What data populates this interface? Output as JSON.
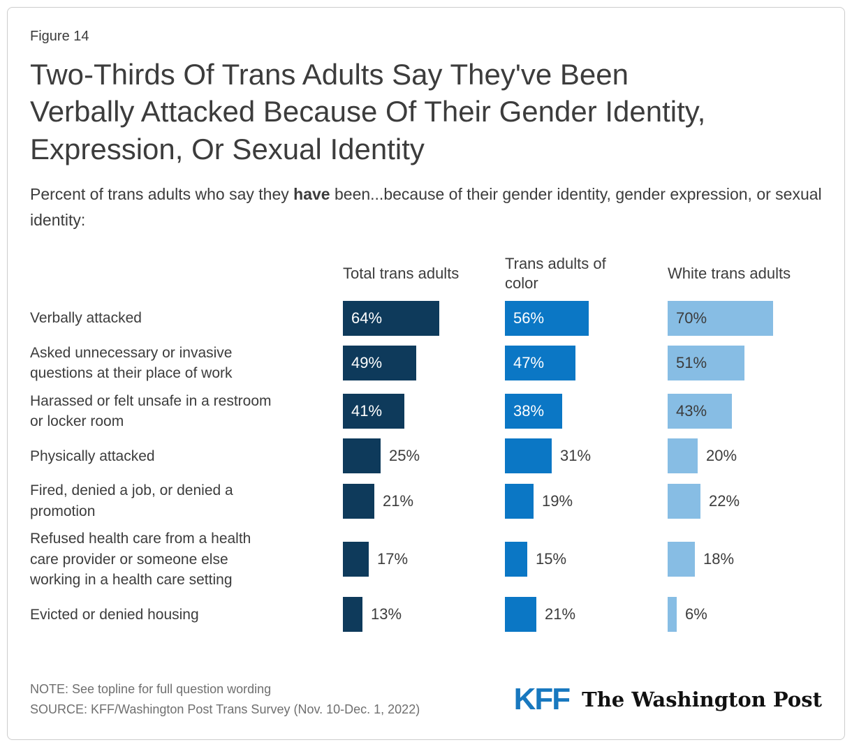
{
  "figure_label": "Figure 14",
  "title_lines": [
    "Two-Thirds Of Trans Adults Say They've Been",
    "Verbally Attacked Because Of Their Gender Identity,",
    "Expression, Or Sexual Identity"
  ],
  "subtitle": {
    "prefix": "Percent of trans adults who say they ",
    "bold": "have",
    "suffix": " been...because of their gender identity, gender expression, or sexual identity:"
  },
  "chart_data": {
    "type": "bar",
    "orientation": "horizontal",
    "title": "Two-Thirds Of Trans Adults Say They've Been Verbally Attacked Because Of Their Gender Identity, Expression, Or Sexual Identity",
    "categories": [
      "Verbally attacked",
      "Asked unnecessary or invasive\nquestions at their place of work",
      "Harassed or felt unsafe in a restroom\nor locker room",
      "Physically attacked",
      "Fired, denied a job, or denied a\npromotion",
      "Refused health care from a health\ncare provider or someone else\nworking in a health care setting",
      "Evicted or denied housing"
    ],
    "series": [
      {
        "name": "Total trans adults",
        "color": "#0e3a5b",
        "value_label_inside_color": "#ffffff",
        "values": [
          64,
          49,
          41,
          25,
          21,
          17,
          13
        ]
      },
      {
        "name": "Trans adults of color",
        "color": "#0b77c5",
        "value_label_inside_color": "#ffffff",
        "values": [
          56,
          47,
          38,
          31,
          19,
          15,
          21
        ]
      },
      {
        "name": "White trans adults",
        "color": "#87bde4",
        "value_label_inside_color": "#3c3c3c",
        "values": [
          70,
          51,
          43,
          20,
          22,
          18,
          6
        ]
      }
    ],
    "value_suffix": "%",
    "value_labels": true,
    "inside_label_threshold": 35,
    "xlim": [
      0,
      100
    ],
    "grid": false,
    "legend_position": "column-headers"
  },
  "footer": {
    "note": "NOTE: See topline for full question wording",
    "source": "SOURCE: KFF/Washington Post Trans Survey (Nov. 10-Dec. 1, 2022)",
    "logos": [
      {
        "name": "KFF",
        "color": "#1878bf"
      },
      {
        "name": "The Washington Post",
        "color": "#111111"
      }
    ]
  },
  "colors": {
    "bar_dark_navy": "#0e3a5b",
    "bar_medium_blue": "#0b77c5",
    "bar_light_blue": "#87bde4",
    "text_dark": "#3c3c3c",
    "text_gray": "#6f6f6f",
    "frame_border": "#cccccc"
  }
}
